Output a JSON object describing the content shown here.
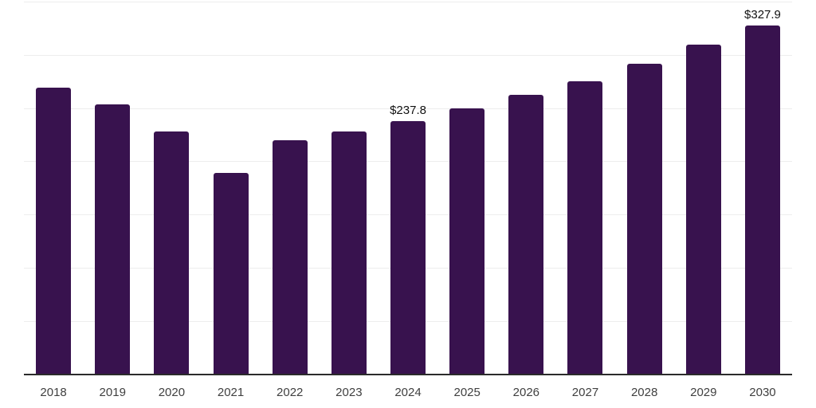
{
  "chart_data": {
    "type": "bar",
    "title": "",
    "xlabel": "",
    "ylabel": "",
    "categories": [
      "2018",
      "2019",
      "2020",
      "2021",
      "2022",
      "2023",
      "2024",
      "2025",
      "2026",
      "2027",
      "2028",
      "2029",
      "2030"
    ],
    "values": [
      269.0,
      253.5,
      227.9,
      189.2,
      219.8,
      228.3,
      237.8,
      249.4,
      262.2,
      275.4,
      291.3,
      309.8,
      327.9
    ],
    "data_labels": [
      "",
      "",
      "",
      "",
      "",
      "",
      "$237.8",
      "",
      "",
      "",
      "",
      "",
      "$327.9"
    ],
    "ylim": [
      0,
      350
    ],
    "gridline_interval": 50,
    "grid": "horizontal-only",
    "legend_position": "none",
    "y_tick_labels_visible": false
  },
  "style": {
    "bar_color": "#38124e",
    "gridline_color": "#ededed",
    "axis_line_color": "#2b2b2b",
    "tick_label_color": "#404040",
    "data_label_color": "#111111",
    "background_color": "#ffffff"
  }
}
